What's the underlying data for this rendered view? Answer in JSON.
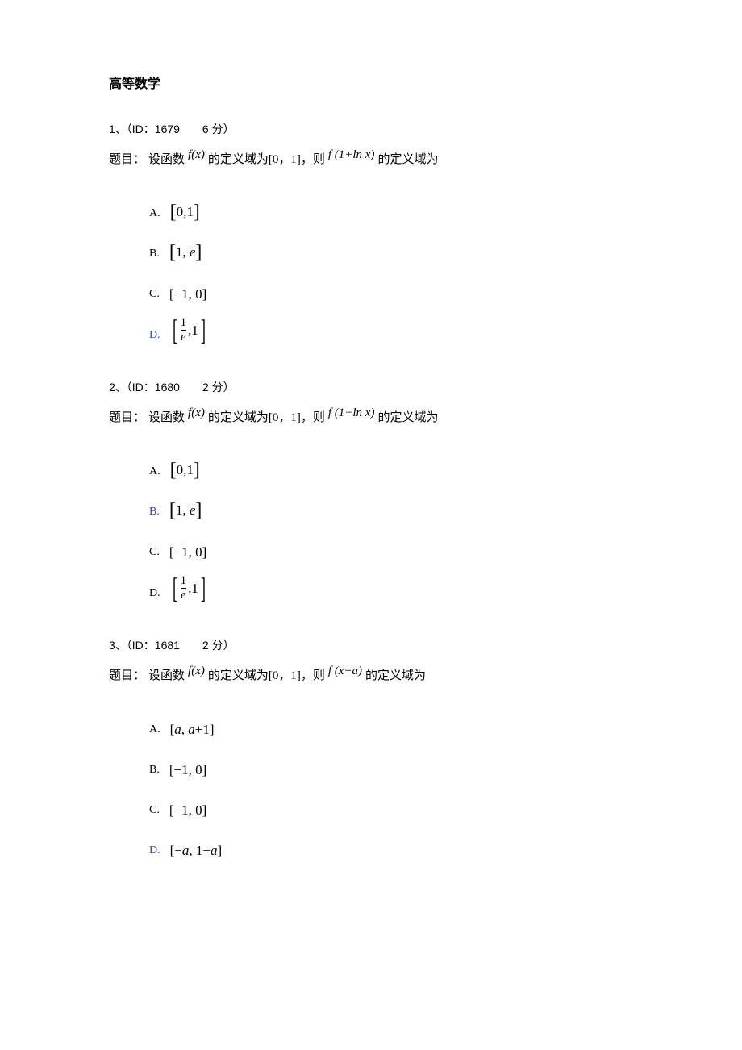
{
  "page_title": "高等数学",
  "questions": [
    {
      "number": "1",
      "id": "1679",
      "points": "6",
      "header": "1、（ID：1679　　6 分）",
      "stem_label": "题目：",
      "stem_part1": "设函数",
      "stem_math1": "f(x)",
      "stem_part2": "的定义域为[0，1]，则",
      "stem_math2": "f (1+ln x)",
      "stem_part3": "的定义域为",
      "options": [
        {
          "letter": "A.",
          "type": "bracket",
          "content": "[0,1]",
          "correct": false
        },
        {
          "letter": "B.",
          "type": "bracket",
          "content": "[1, e]",
          "correct": false
        },
        {
          "letter": "C.",
          "type": "plain",
          "content": "[−1, 0]",
          "correct": false
        },
        {
          "letter": "D.",
          "type": "fraction",
          "num": "1",
          "den": "e",
          "rest": ",1",
          "correct": true
        }
      ]
    },
    {
      "number": "2",
      "id": "1680",
      "points": "2",
      "header": "2、（ID：1680　　2 分）",
      "stem_label": "题目：",
      "stem_part1": "设函数",
      "stem_math1": "f(x)",
      "stem_part2": "的定义域为[0，1]，则",
      "stem_math2": "f (1−ln x)",
      "stem_part3": "的定义域为",
      "options": [
        {
          "letter": "A.",
          "type": "bracket",
          "content": "[0,1]",
          "correct": false
        },
        {
          "letter": "B.",
          "type": "bracket",
          "content": "[1, e]",
          "correct": true
        },
        {
          "letter": "C.",
          "type": "plain",
          "content": "[−1, 0]",
          "correct": false
        },
        {
          "letter": "D.",
          "type": "fraction",
          "num": "1",
          "den": "e",
          "rest": ",1",
          "correct": false
        }
      ]
    },
    {
      "number": "3",
      "id": "1681",
      "points": "2",
      "header": "3、（ID：1681　　2 分）",
      "stem_label": "题目：",
      "stem_part1": "设函数",
      "stem_math1": "f(x)",
      "stem_part2": "的定义域为[0，1]，则",
      "stem_math2": "f (x+a)",
      "stem_part3": "的定义域为",
      "options": [
        {
          "letter": "A.",
          "type": "italic-plain",
          "content": "[a, a+1]",
          "correct": false
        },
        {
          "letter": "B.",
          "type": "plain",
          "content": "[−1, 0]",
          "correct": false
        },
        {
          "letter": "C.",
          "type": "plain",
          "content": "[−1, 0]",
          "correct": false
        },
        {
          "letter": "D.",
          "type": "italic-plain",
          "content": "[−a, 1−a]",
          "correct": true
        }
      ]
    }
  ]
}
